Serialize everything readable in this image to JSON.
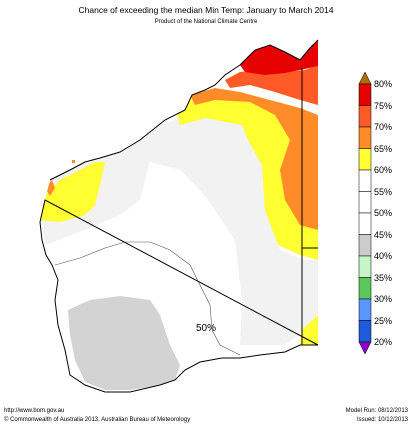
{
  "title": "Chance of exceeding the median Min Temp: January to March 2014",
  "subtitle": "Product of the National Climate Centre",
  "map_annotation": "50%",
  "footer": {
    "url": "http://www.bom.gov.au",
    "copyright": "©  Commonwealth of Australia 2013, Australian Bureau of Meteorology",
    "model_run": "Model Run: 08/12/2013",
    "issued": "Issued: 10/12/2013"
  },
  "legend": [
    {
      "label": "80%",
      "color": "#e60000"
    },
    {
      "label": "75%",
      "color": "#ff5a28"
    },
    {
      "label": "70%",
      "color": "#ff8c28"
    },
    {
      "label": "65%",
      "color": "#ffc832"
    },
    {
      "label": "60%",
      "color": "#ffff32"
    },
    {
      "label": "55%",
      "color": "#f2f2f2"
    },
    {
      "label": "50%",
      "color": "#ffffff"
    },
    {
      "label": "45%",
      "color": "#ffffff"
    },
    {
      "label": "40%",
      "color": "#cccccc"
    },
    {
      "label": "35%",
      "color": "#c8f5c8"
    },
    {
      "label": "30%",
      "color": "#96e696"
    },
    {
      "label": "25%",
      "color": "#5ac85a"
    },
    {
      "label": "20%",
      "color": "#5a96ff"
    }
  ],
  "legend_extremes": {
    "top_color": "#b36b00",
    "bottom_color": "#8c00c8",
    "blue_color": "#1e5adc"
  }
}
